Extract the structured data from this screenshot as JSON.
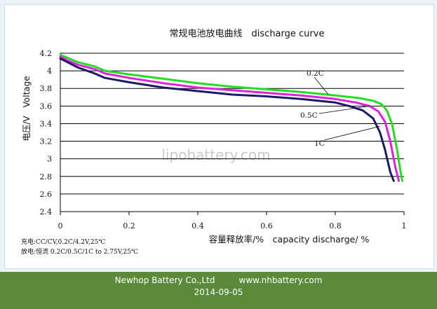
{
  "chart_data": {
    "type": "line",
    "title": "常规电池放电曲线　discharge curve",
    "xlabel": "容量释放率/%　capacity discharge/ %",
    "ylabel": "电压/V　Voltage",
    "xlim": [
      0,
      1
    ],
    "ylim": [
      2.4,
      4.2
    ],
    "x_ticks": [
      "0",
      "0.2",
      "0.4",
      "0.6",
      "0.8",
      "1"
    ],
    "y_ticks": [
      "2.4",
      "2.6",
      "2.8",
      "3",
      "3.2",
      "3.4",
      "3.6",
      "3.8",
      "4",
      "4.2"
    ],
    "grid": {
      "horizontal": true,
      "vertical": false
    },
    "watermark": "lipobattery.com",
    "notes": [
      "充电:CC/CV,0.2C/4.2V,25℃",
      "放电:恒流 0.2C/0.5C/1C to 2.75V,25℃"
    ],
    "series": [
      {
        "name": "0.2C",
        "color": "#22dd22",
        "x": [
          0,
          0.02,
          0.05,
          0.1,
          0.13,
          0.2,
          0.3,
          0.4,
          0.5,
          0.6,
          0.7,
          0.8,
          0.87,
          0.91,
          0.935,
          0.95,
          0.965,
          0.98,
          0.99,
          0.995
        ],
        "y": [
          4.18,
          4.15,
          4.1,
          4.05,
          4.0,
          3.96,
          3.91,
          3.86,
          3.82,
          3.79,
          3.76,
          3.72,
          3.69,
          3.66,
          3.62,
          3.55,
          3.4,
          3.1,
          2.85,
          2.75
        ]
      },
      {
        "name": "0.5C",
        "color": "#e020e0",
        "x": [
          0,
          0.02,
          0.05,
          0.1,
          0.13,
          0.2,
          0.3,
          0.4,
          0.5,
          0.6,
          0.7,
          0.8,
          0.86,
          0.9,
          0.925,
          0.945,
          0.96,
          0.975,
          0.985
        ],
        "y": [
          4.16,
          4.12,
          4.07,
          4.02,
          3.97,
          3.92,
          3.86,
          3.81,
          3.78,
          3.75,
          3.72,
          3.68,
          3.64,
          3.6,
          3.54,
          3.42,
          3.2,
          2.9,
          2.75
        ]
      },
      {
        "name": "1C",
        "color": "#1a1a66",
        "x": [
          0,
          0.02,
          0.05,
          0.1,
          0.13,
          0.2,
          0.3,
          0.4,
          0.5,
          0.6,
          0.7,
          0.8,
          0.84,
          0.88,
          0.91,
          0.93,
          0.945,
          0.96,
          0.97
        ],
        "y": [
          4.14,
          4.1,
          4.04,
          3.97,
          3.92,
          3.87,
          3.81,
          3.77,
          3.73,
          3.71,
          3.68,
          3.64,
          3.6,
          3.55,
          3.46,
          3.3,
          3.1,
          2.85,
          2.75
        ]
      }
    ],
    "annotations": [
      {
        "text": "0.2C",
        "series": "0.2C",
        "x": 0.78,
        "y": 3.73
      },
      {
        "text": "0.5C",
        "series": "0.5C",
        "x": 0.9,
        "y": 3.6
      },
      {
        "text": "1C",
        "series": "1C",
        "x": 0.93,
        "y": 3.37
      }
    ]
  },
  "footer": {
    "company": "Newhop Battery Co.,Ltd",
    "website": "www.nhbattery.com",
    "date": "2014-09-05",
    "background_color": "#5b8a3a"
  }
}
